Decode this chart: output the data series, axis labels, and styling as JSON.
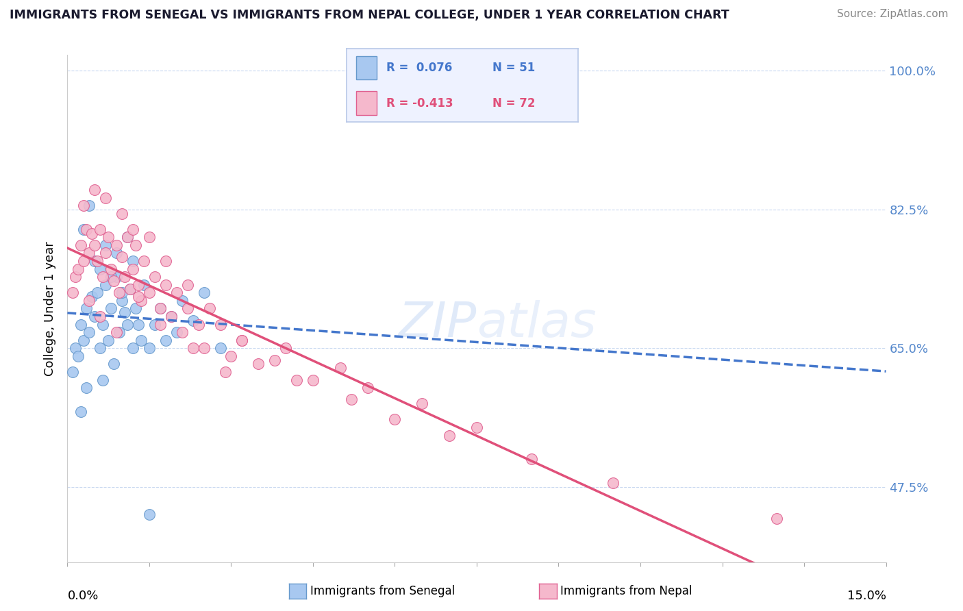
{
  "title": "IMMIGRANTS FROM SENEGAL VS IMMIGRANTS FROM NEPAL COLLEGE, UNDER 1 YEAR CORRELATION CHART",
  "source": "Source: ZipAtlas.com",
  "ylabel": "College, Under 1 year",
  "right_yticks": [
    100.0,
    82.5,
    65.0,
    47.5
  ],
  "xlim": [
    0.0,
    15.0
  ],
  "ylim": [
    38.0,
    102.0
  ],
  "senegal_R": 0.076,
  "senegal_N": 51,
  "nepal_R": -0.413,
  "nepal_N": 72,
  "senegal_color": "#a8c8f0",
  "nepal_color": "#f5b8cc",
  "senegal_edge_color": "#6699cc",
  "nepal_edge_color": "#e06090",
  "senegal_line_color": "#4477cc",
  "nepal_line_color": "#e0507a",
  "watermark": "ZIPatlas",
  "legend_box_bg": "#eef2ff",
  "legend_box_edge": "#b8c8e8",
  "senegal_x": [
    0.1,
    0.15,
    0.2,
    0.25,
    0.3,
    0.35,
    0.4,
    0.45,
    0.5,
    0.55,
    0.6,
    0.65,
    0.7,
    0.75,
    0.8,
    0.85,
    0.9,
    0.95,
    1.0,
    1.05,
    1.1,
    1.15,
    1.2,
    1.25,
    1.3,
    1.35,
    1.4,
    1.5,
    1.6,
    1.7,
    1.8,
    1.9,
    2.0,
    2.1,
    2.3,
    2.5,
    2.8,
    0.3,
    0.4,
    0.5,
    0.6,
    0.7,
    0.8,
    0.9,
    1.0,
    1.1,
    1.2,
    0.35,
    0.65,
    0.25,
    1.5
  ],
  "senegal_y": [
    62.0,
    65.0,
    64.0,
    68.0,
    66.0,
    70.0,
    67.0,
    71.5,
    69.0,
    72.0,
    65.0,
    68.0,
    73.0,
    66.0,
    70.0,
    63.0,
    74.0,
    67.0,
    71.0,
    69.5,
    68.0,
    72.5,
    65.0,
    70.0,
    68.0,
    66.0,
    73.0,
    65.0,
    68.0,
    70.0,
    66.0,
    69.0,
    67.0,
    71.0,
    68.5,
    72.0,
    65.0,
    80.0,
    83.0,
    76.0,
    75.0,
    78.0,
    74.0,
    77.0,
    72.0,
    79.0,
    76.0,
    60.0,
    61.0,
    57.0,
    44.0
  ],
  "nepal_x": [
    0.1,
    0.15,
    0.2,
    0.25,
    0.3,
    0.35,
    0.4,
    0.45,
    0.5,
    0.55,
    0.6,
    0.65,
    0.7,
    0.75,
    0.8,
    0.85,
    0.9,
    0.95,
    1.0,
    1.05,
    1.1,
    1.15,
    1.2,
    1.25,
    1.3,
    1.35,
    1.4,
    1.5,
    1.6,
    1.7,
    1.8,
    1.9,
    2.0,
    2.1,
    2.2,
    2.4,
    2.5,
    2.8,
    3.0,
    3.2,
    3.5,
    4.0,
    4.5,
    5.0,
    5.5,
    6.5,
    7.5,
    0.3,
    0.5,
    0.7,
    1.0,
    1.2,
    1.5,
    1.8,
    2.2,
    2.6,
    3.2,
    3.8,
    4.2,
    5.2,
    6.0,
    7.0,
    8.5,
    10.0,
    13.0,
    0.4,
    0.6,
    0.9,
    1.3,
    1.7,
    2.3,
    2.9
  ],
  "nepal_y": [
    72.0,
    74.0,
    75.0,
    78.0,
    76.0,
    80.0,
    77.0,
    79.5,
    78.0,
    76.0,
    80.0,
    74.0,
    77.0,
    79.0,
    75.0,
    73.5,
    78.0,
    72.0,
    76.5,
    74.0,
    79.0,
    72.5,
    75.0,
    78.0,
    73.0,
    71.0,
    76.0,
    72.0,
    74.0,
    70.0,
    73.0,
    69.0,
    72.0,
    67.0,
    70.0,
    68.0,
    65.0,
    68.0,
    64.0,
    66.0,
    63.0,
    65.0,
    61.0,
    62.5,
    60.0,
    58.0,
    55.0,
    83.0,
    85.0,
    84.0,
    82.0,
    80.0,
    79.0,
    76.0,
    73.0,
    70.0,
    66.0,
    63.5,
    61.0,
    58.5,
    56.0,
    54.0,
    51.0,
    48.0,
    43.5,
    71.0,
    69.0,
    67.0,
    71.5,
    68.0,
    65.0,
    62.0
  ]
}
